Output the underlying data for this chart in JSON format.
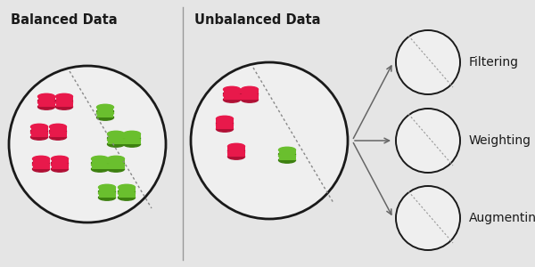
{
  "bg_color": "#e5e5e5",
  "circle_fill": "#efefef",
  "circle_edge": "#1a1a1a",
  "red_color": "#e8194b",
  "red_dark": "#b01035",
  "green_color": "#6abf2e",
  "green_dark": "#3d8010",
  "divider_color": "#777777",
  "arrow_color": "#666666",
  "title_balanced": "Balanced Data",
  "title_unbalanced": "Unbalanced Data",
  "techniques": [
    "Filtering",
    "Weighting",
    "Augmenting"
  ],
  "title_fontsize": 10.5,
  "label_fontsize": 10
}
